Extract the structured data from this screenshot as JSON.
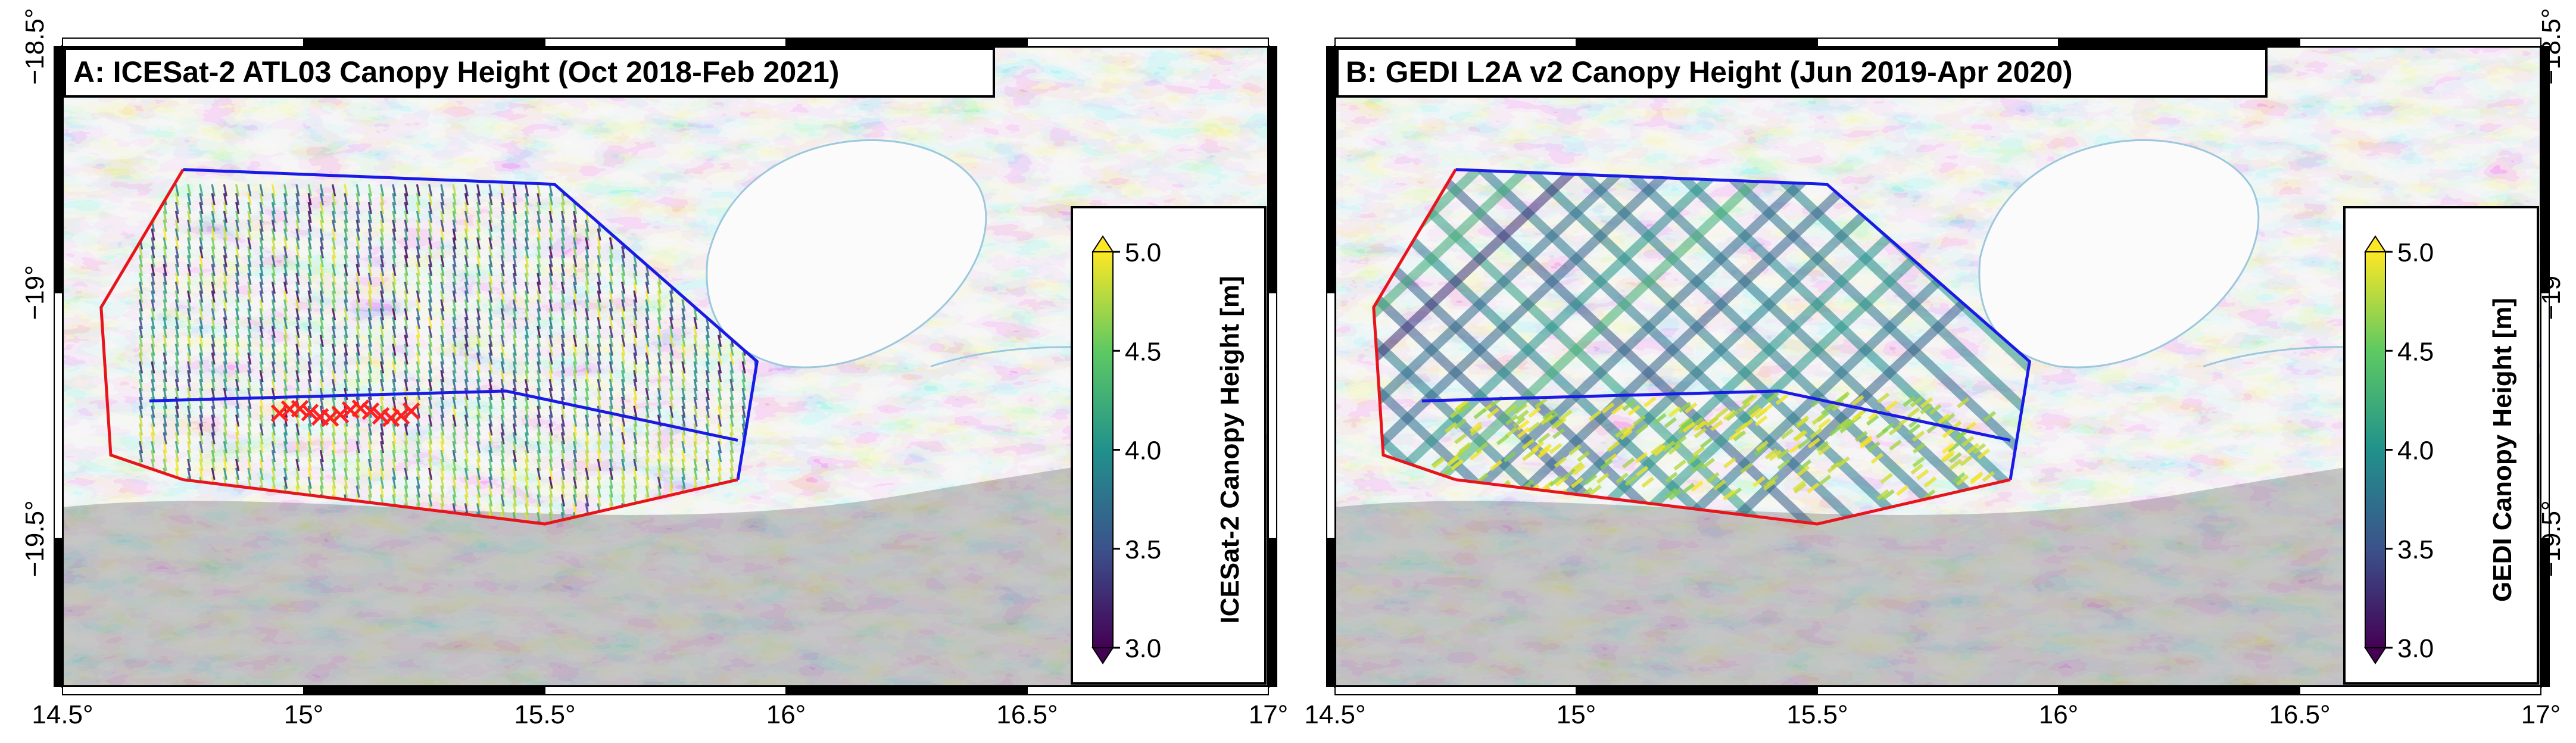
{
  "panels": [
    {
      "id": "A",
      "title": "A: ICESat-2 ATL03 Canopy Height (Oct 2018-Feb 2021)",
      "colorbar_label": "ICESat-2 Canopy Height [m]",
      "track_pattern": "vertical"
    },
    {
      "id": "B",
      "title": "B: GEDI L2A v2 Canopy Height (Jun 2019-Apr 2020)",
      "colorbar_label": "GEDI Canopy Height [m]",
      "track_pattern": "diagonal-crossing"
    }
  ],
  "map": {
    "lon_range": [
      14.5,
      17.0
    ],
    "lat_range": [
      -19.8,
      -18.5
    ],
    "lon_ticks": [
      "14.5°",
      "15°",
      "15.5°",
      "16°",
      "16.5°",
      "17°"
    ],
    "lat_ticks_left": [
      "−18.5°",
      "−19°",
      "−19.5°"
    ],
    "lat_ticks_right": [
      "−18.5°",
      "−19°",
      "−19.5°"
    ]
  },
  "colorbar": {
    "min": 3.0,
    "max": 5.0,
    "ticks": [
      "5.0",
      "4.5",
      "4.0",
      "3.5",
      "3.0"
    ],
    "colormap": "viridis"
  },
  "colors": {
    "outer_polygon": "#e8141c",
    "upper_polygon": "#1a1ae6",
    "markers": "#ff2020",
    "frame": "#000000"
  }
}
